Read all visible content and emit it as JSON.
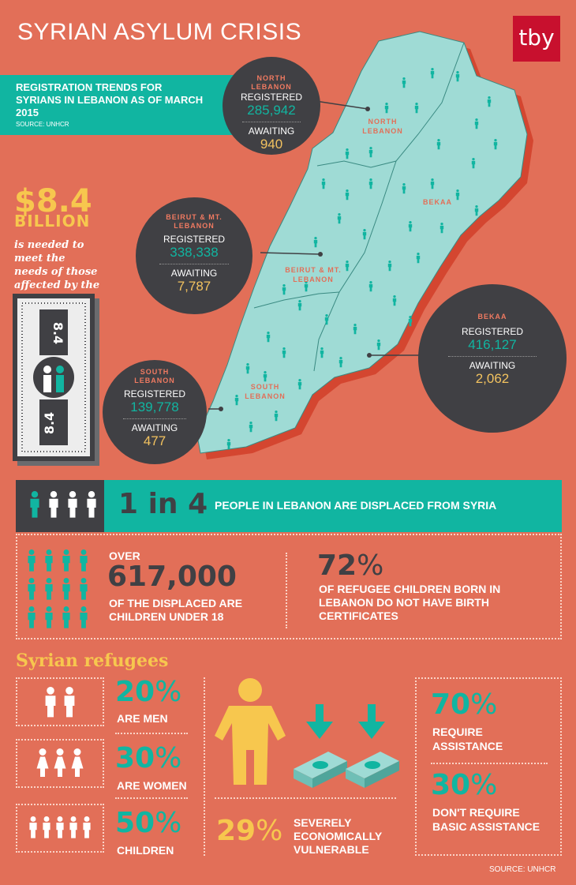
{
  "header": {
    "title": "SYRIAN ASYLUM CRISIS",
    "logo": "tby"
  },
  "intro": {
    "title": "REGISTRATION TRENDS FOR SYRIANS IN LEBANON AS OF MARCH 2015",
    "source": "SOURCE: UNHCR"
  },
  "regions": {
    "north": {
      "name": "NORTH LEBANON",
      "registered_label": "REGISTERED",
      "registered": "285,942",
      "awaiting_label": "AWAITING",
      "awaiting": "940"
    },
    "beirut": {
      "name": "BEIRUT & MT. LEBANON",
      "registered_label": "REGISTERED",
      "registered": "338,338",
      "awaiting_label": "AWAITING",
      "awaiting": "7,787"
    },
    "south": {
      "name": "SOUTH LEBANON",
      "registered_label": "REGISTERED",
      "registered": "139,778",
      "awaiting_label": "AWAITING",
      "awaiting": "477"
    },
    "bekaa": {
      "name": "BEKAA",
      "registered_label": "REGISTERED",
      "registered": "416,127",
      "awaiting_label": "AWAITING",
      "awaiting": "2,062"
    }
  },
  "map_labels": {
    "north": "NORTH LEBANON",
    "beirut": "BEIRUT & MT. LEBANON",
    "south": "SOUTH LEBANON",
    "bekaa": "BEKAA"
  },
  "money": {
    "amount": "$8.4",
    "unit": "BILLION",
    "text": "is needed to meet the needs of those affected by the Syria crisis",
    "bill_value": "8.4"
  },
  "band": {
    "ratio": "1 in 4",
    "text": "PEOPLE IN LEBANON ARE  DISPLACED FROM SYRIA"
  },
  "children": {
    "over": "OVER",
    "number": "617,000",
    "desc": "OF THE DISPLACED ARE CHILDREN UNDER 18"
  },
  "births": {
    "value": "72",
    "pct": "%",
    "desc": "OF REFUGEE CHILDREN BORN IN LEBANON DO NOT HAVE BIRTH CERTIFICATES"
  },
  "refugees": {
    "title": "Syrian refugees",
    "men": {
      "value": "20",
      "pct": "%",
      "label": "ARE MEN"
    },
    "women": {
      "value": "30",
      "pct": "%",
      "label": "ARE WOMEN"
    },
    "kids": {
      "value": "50",
      "pct": "%",
      "label": "CHILDREN"
    }
  },
  "vulnerable": {
    "value": "29",
    "pct": "%",
    "label": "SEVERELY ECONOMICALLY VULNERABLE"
  },
  "assistance": {
    "require": {
      "value": "70",
      "pct": "%",
      "label": "REQUIRE ASSISTANCE"
    },
    "norequire": {
      "value": "30",
      "pct": "%",
      "label": "DON'T REQUIRE BASIC ASSISTANCE"
    }
  },
  "footer": {
    "source": "SOURCE: UNHCR"
  },
  "colors": {
    "background": "#e26f58",
    "teal": "#11b5a1",
    "dark": "#404044",
    "yellow": "#f7c74e",
    "map": "#9fdbd5"
  },
  "icons": [
    "person-icon",
    "money-stack-icon",
    "arrow-down-icon",
    "banknote-icon"
  ]
}
